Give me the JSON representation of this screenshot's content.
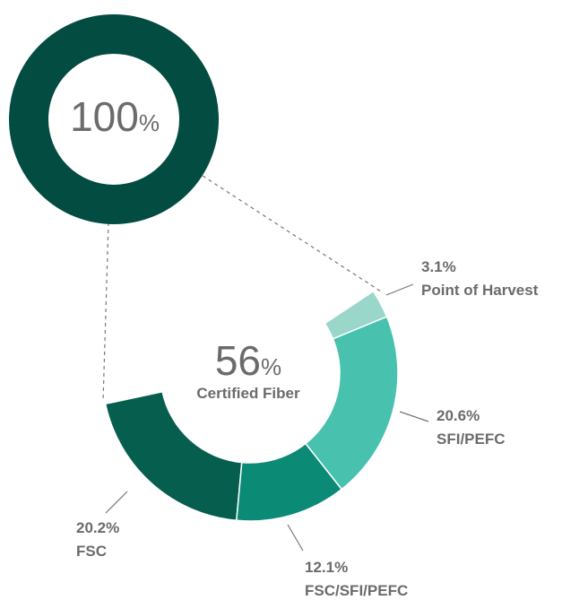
{
  "chart_data": [
    {
      "type": "ring",
      "values": [
        100
      ],
      "unit": "%",
      "color": "#024c41"
    },
    {
      "type": "donut",
      "total": 56,
      "unit": "%",
      "center_label": "Certified Fiber",
      "categories": [
        "FSC",
        "FSC/SFI/PEFC",
        "SFI/PEFC",
        "Point of Harvest"
      ],
      "values": [
        20.2,
        12.1,
        20.6,
        3.1
      ],
      "value_labels": [
        "20.2%",
        "12.1%",
        "20.6%",
        "3.1%"
      ],
      "colors": [
        "#065e4f",
        "#0b8a76",
        "#48c1ae",
        "#9bd6cb"
      ]
    }
  ]
}
